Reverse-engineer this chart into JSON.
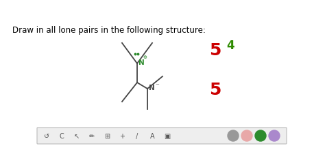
{
  "background_color": "#ffffff",
  "title_text": "Draw in all lone pairs in the following structure:",
  "title_fontsize": 8.5,
  "title_color": "#000000",
  "score_5a_text": "5",
  "score_5a_color": "#cc0000",
  "score_5a_fontsize": 18,
  "score_4_text": "4",
  "score_4_color": "#2e8b00",
  "score_4_fontsize": 12,
  "score_5b_text": "5",
  "score_5b_color": "#cc0000",
  "score_5b_fontsize": 18,
  "bond_color": "#444444",
  "N_upper_color": "#2d8b2d",
  "N_lower_color": "#444444",
  "dot_color": "#2d8b2d",
  "toolbar_color": "#eeeeee",
  "circle_colors": [
    "#999999",
    "#e8a8a8",
    "#2d8b2d",
    "#aa88cc"
  ]
}
